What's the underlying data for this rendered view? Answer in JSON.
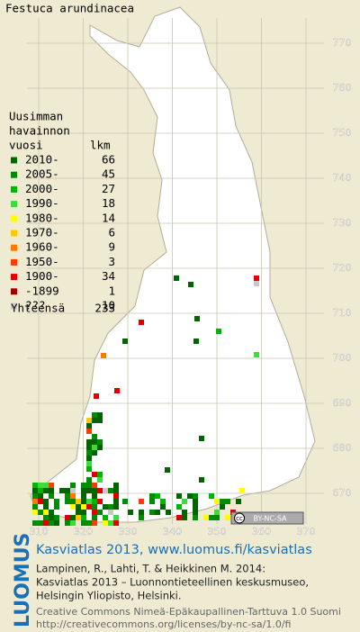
{
  "title": "Festuca arundinacea",
  "legend": {
    "header": [
      "Uusimman",
      "havainnon",
      "vuosi",
      "lkm"
    ],
    "rows": [
      {
        "label": "2010-",
        "count": 66,
        "color": "#006400"
      },
      {
        "label": "2005-",
        "count": 45,
        "color": "#008c00"
      },
      {
        "label": "2000-",
        "count": 27,
        "color": "#00b400"
      },
      {
        "label": "1990-",
        "count": 18,
        "color": "#3cdc3c"
      },
      {
        "label": "1980-",
        "count": 14,
        "color": "#ffff00"
      },
      {
        "label": "1970-",
        "count": 6,
        "color": "#ffc800"
      },
      {
        "label": "1960-",
        "count": 9,
        "color": "#ff7800"
      },
      {
        "label": "1950-",
        "count": 3,
        "color": "#ff3c00"
      },
      {
        "label": "1900-",
        "count": 34,
        "color": "#dc0000"
      },
      {
        "label": "-1899",
        "count": 1,
        "color": "#a00000"
      },
      {
        "label": "???",
        "count": 10,
        "color": "#c8c8c8"
      }
    ],
    "total_label": "Yhteensä",
    "total": 233
  },
  "map": {
    "xticks": [
      310,
      320,
      330,
      340,
      350,
      360,
      370
    ],
    "yticks": [
      670,
      680,
      690,
      700,
      710,
      720,
      730,
      740,
      750,
      760,
      770
    ],
    "badge": [
      "cc",
      "BY-NC-SA"
    ]
  },
  "credits": {
    "brand": "LUOMUS",
    "heading": "Kasviatlas 2013, www.luomus.fi/kasviatlas",
    "citation": [
      "Lampinen, R., Lahti, T. & Heikkinen M. 2014:",
      "Kasviatlas 2013 – Luonnontieteellinen keskusmuseo,",
      "Helsingin Yliopisto, Helsinki."
    ],
    "license": [
      "Creative Commons Nimeä-Epäkaupallinen-Tarttuva 1.0 Suomi",
      "http://creativecommons.org/licenses/by-nc-sa/1.0/fi"
    ]
  }
}
